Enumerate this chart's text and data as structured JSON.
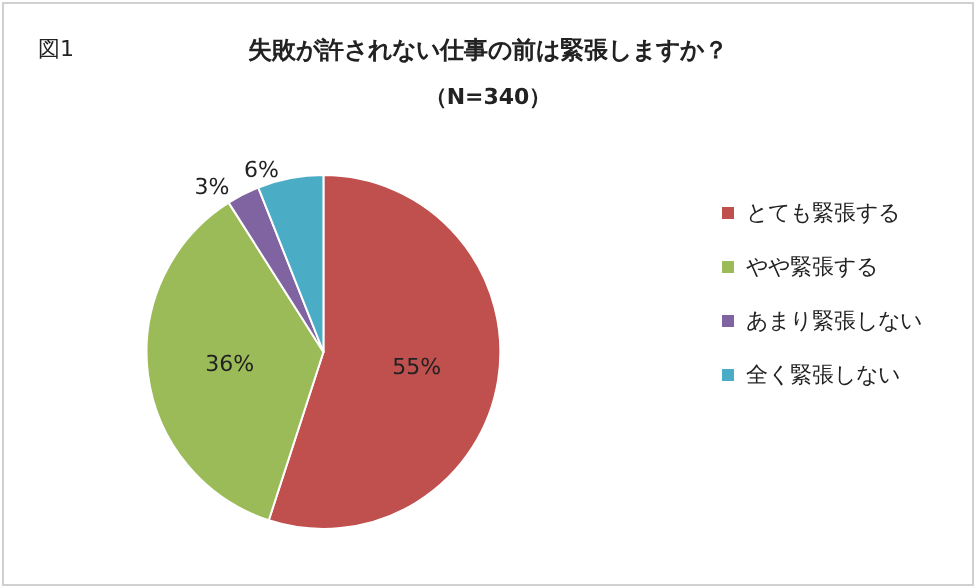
{
  "chart_data": {
    "type": "pie",
    "title": "失敗が許されない仕事の前は緊張しますか？",
    "subtitle": "（N=340）",
    "annotations": [
      "図1"
    ],
    "categories": [
      "とても緊張する",
      "やや緊張する",
      "あまり緊張しない",
      "全く緊張しない"
    ],
    "values": [
      55,
      36,
      3,
      6
    ],
    "value_labels": [
      "55%",
      "36%",
      "3%",
      "6%"
    ],
    "colors": [
      "#c0504d",
      "#9bbb59",
      "#8064a2",
      "#4bacc6"
    ],
    "legend": "right"
  }
}
